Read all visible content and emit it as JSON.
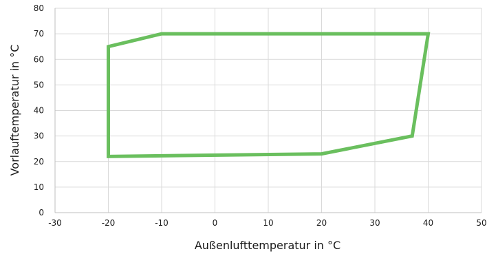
{
  "chart_data": {
    "type": "line",
    "title": "",
    "xlabel": "Außenlufttemperatur in °C",
    "ylabel": "Vorlauftemperatur in °C",
    "xlim": [
      -30,
      50
    ],
    "ylim": [
      0,
      80
    ],
    "xticks": [
      -30,
      -20,
      -10,
      0,
      10,
      20,
      30,
      40,
      50
    ],
    "yticks": [
      0,
      10,
      20,
      30,
      40,
      50,
      60,
      70,
      80
    ],
    "x_tick_labels": [
      "-30",
      "-20",
      "-10",
      "0",
      "10",
      "20",
      "30",
      "40",
      "50"
    ],
    "y_tick_labels": [
      "0",
      "10",
      "20",
      "30",
      "40",
      "50",
      "60",
      "70",
      "80"
    ],
    "grid": {
      "vertical": true,
      "horizontal": true
    },
    "legend": "none",
    "series": [
      {
        "color": "#6abf5e",
        "closed": true,
        "points": [
          {
            "x": -20,
            "y": 22
          },
          {
            "x": -20,
            "y": 65
          },
          {
            "x": -10,
            "y": 70
          },
          {
            "x": 40,
            "y": 70
          },
          {
            "x": 37,
            "y": 30
          },
          {
            "x": 20,
            "y": 23
          },
          {
            "x": -20,
            "y": 22
          }
        ]
      }
    ]
  }
}
